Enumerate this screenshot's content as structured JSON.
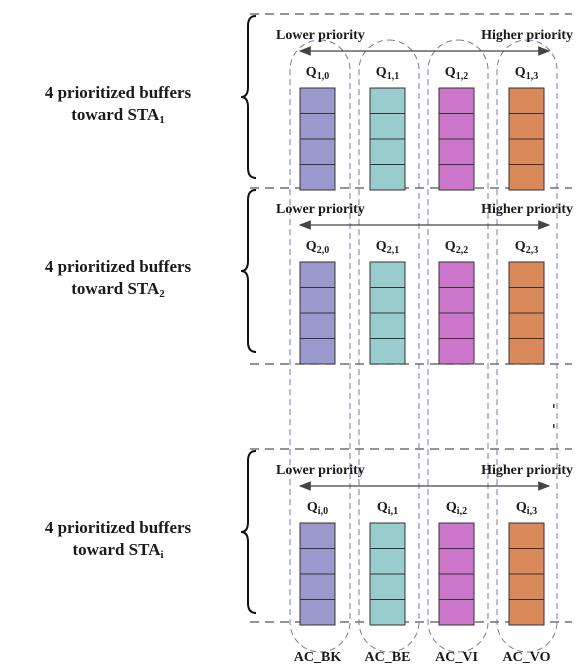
{
  "queues": [
    {
      "ac_label": "AC_BK",
      "color": "#9999CC"
    },
    {
      "ac_label": "AC_BE",
      "color": "#99CCCC"
    },
    {
      "ac_label": "AC_VI",
      "color": "#CC77CC"
    },
    {
      "ac_label": "AC_VO",
      "color": "#D9895A"
    }
  ],
  "groups": [
    {
      "label_line1": "4 prioritized buffers",
      "label_line2_prefix": "toward STA",
      "label_line2_sub": "1",
      "lower_priority": "Lower priority",
      "higher_priority": "Higher priority",
      "queue_labels": [
        {
          "main": "Q",
          "sub": "1,0"
        },
        {
          "main": "Q",
          "sub": "1,1"
        },
        {
          "main": "Q",
          "sub": "1,2"
        },
        {
          "main": "Q",
          "sub": "1,3"
        }
      ]
    },
    {
      "label_line1": "4 prioritized buffers",
      "label_line2_prefix": "toward STA",
      "label_line2_sub": "2",
      "lower_priority": "Lower priority",
      "higher_priority": "Higher priority",
      "queue_labels": [
        {
          "main": "Q",
          "sub": "2,0"
        },
        {
          "main": "Q",
          "sub": "2,1"
        },
        {
          "main": "Q",
          "sub": "2,2"
        },
        {
          "main": "Q",
          "sub": "2,3"
        }
      ]
    },
    {
      "label_line1": "4 prioritized buffers",
      "label_line2_prefix": "toward STA",
      "label_line2_sub": "i",
      "lower_priority": "Lower priority",
      "higher_priority": "Higher priority",
      "queue_labels": [
        {
          "main": "Q",
          "sub": "i,0"
        },
        {
          "main": "Q",
          "sub": "i,1"
        },
        {
          "main": "Q",
          "sub": "i,2"
        },
        {
          "main": "Q",
          "sub": "i,3"
        }
      ]
    }
  ]
}
